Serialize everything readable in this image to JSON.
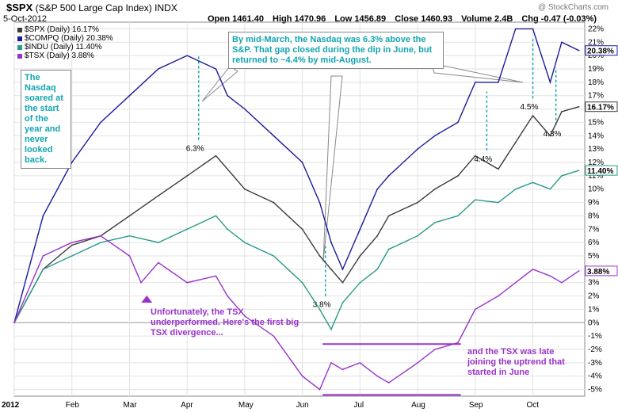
{
  "header": {
    "symbol": "$SPX",
    "name": "(S&P 500 Large Cap Index)",
    "exchange": "INDX",
    "date": "5-Oct-2012",
    "watermark": "@ StockCharts.com",
    "quote": [
      "Open 1461.40",
      "High 1470.96",
      "Low 1456.89",
      "Close 1460.93",
      "Volume 2.4B",
      "Chg -0.47 (-0.03%)"
    ]
  },
  "colors": {
    "spx": "#3a3a3a",
    "compq": "#1a1aa0",
    "indu": "#2a9a8a",
    "tsx": "#9933cc",
    "annotation_teal": "#11a5b0",
    "annotation_purple": "#9933cc"
  },
  "chart_data": {
    "type": "line",
    "title": "$SPX (S&P 500 Large Cap Index) INDX",
    "x": [
      "2012",
      "Feb",
      "Mar",
      "Apr",
      "May",
      "Jun",
      "Jul",
      "Aug",
      "Sep",
      "Oct"
    ],
    "ylim": [
      -5.5,
      22.5
    ],
    "y_ticks": [
      "-5%",
      "-4%",
      "-3%",
      "-2%",
      "-1%",
      "0%",
      "1%",
      "2%",
      "3%",
      "4%",
      "5%",
      "6%",
      "7%",
      "8%",
      "9%",
      "10%",
      "11%",
      "12%",
      "13%",
      "14%",
      "15%",
      "16%",
      "17%",
      "18%",
      "19%",
      "20%",
      "21%",
      "22%"
    ],
    "series": [
      {
        "name": "$SPX (Daily) 16.17%",
        "last_label": "16.17%",
        "key": "spx",
        "values": [
          [
            0,
            0
          ],
          [
            0.5,
            4
          ],
          [
            1,
            5.8
          ],
          [
            1.5,
            6.5
          ],
          [
            2,
            8
          ],
          [
            2.5,
            9.5
          ],
          [
            3,
            11
          ],
          [
            3.5,
            12.5
          ],
          [
            3.7,
            11.5
          ],
          [
            4,
            10
          ],
          [
            4.5,
            9
          ],
          [
            5,
            7
          ],
          [
            5.3,
            5
          ],
          [
            5.5,
            4
          ],
          [
            5.7,
            3
          ],
          [
            6,
            5
          ],
          [
            6.3,
            6.5
          ],
          [
            6.5,
            8
          ],
          [
            7,
            9
          ],
          [
            7.3,
            10
          ],
          [
            7.7,
            11
          ],
          [
            8,
            12.5
          ],
          [
            8.4,
            11.5
          ],
          [
            8.7,
            13.5
          ],
          [
            9,
            15.5
          ],
          [
            9.3,
            14
          ],
          [
            9.5,
            15.8
          ],
          [
            9.8,
            16.17
          ]
        ]
      },
      {
        "name": "$COMPQ (Daily) 20.38%",
        "last_label": "20.38%",
        "key": "compq",
        "values": [
          [
            0,
            0
          ],
          [
            0.5,
            8
          ],
          [
            1,
            12
          ],
          [
            1.5,
            15
          ],
          [
            2,
            17
          ],
          [
            2.5,
            19
          ],
          [
            3,
            20
          ],
          [
            3.5,
            19
          ],
          [
            3.7,
            17
          ],
          [
            4,
            16
          ],
          [
            4.5,
            14
          ],
          [
            5,
            12
          ],
          [
            5.3,
            9
          ],
          [
            5.5,
            6
          ],
          [
            5.7,
            4
          ],
          [
            6,
            7
          ],
          [
            6.3,
            10
          ],
          [
            6.5,
            11
          ],
          [
            7,
            13
          ],
          [
            7.3,
            14
          ],
          [
            7.7,
            15
          ],
          [
            8,
            18
          ],
          [
            8.4,
            18
          ],
          [
            8.7,
            22
          ],
          [
            9,
            22
          ],
          [
            9.3,
            18
          ],
          [
            9.5,
            21
          ],
          [
            9.8,
            20.38
          ]
        ]
      },
      {
        "name": "$INDU (Daily) 11.40%",
        "last_label": "11.40%",
        "key": "indu",
        "values": [
          [
            0,
            0
          ],
          [
            0.5,
            4
          ],
          [
            1,
            5
          ],
          [
            1.5,
            6
          ],
          [
            2,
            6.5
          ],
          [
            2.5,
            6
          ],
          [
            3,
            7
          ],
          [
            3.5,
            8
          ],
          [
            3.7,
            7
          ],
          [
            4,
            6
          ],
          [
            4.5,
            5
          ],
          [
            5,
            3
          ],
          [
            5.3,
            1
          ],
          [
            5.5,
            -0.5
          ],
          [
            5.7,
            1.5
          ],
          [
            6,
            3
          ],
          [
            6.3,
            4
          ],
          [
            6.5,
            5.5
          ],
          [
            7,
            6.5
          ],
          [
            7.3,
            7.5
          ],
          [
            7.7,
            8
          ],
          [
            8,
            9.2
          ],
          [
            8.4,
            9
          ],
          [
            8.7,
            10
          ],
          [
            9,
            10.5
          ],
          [
            9.3,
            10
          ],
          [
            9.5,
            11
          ],
          [
            9.8,
            11.4
          ]
        ]
      },
      {
        "name": "$TSX (Daily) 3.88%",
        "last_label": "3.88%",
        "key": "tsx",
        "values": [
          [
            0,
            0
          ],
          [
            0.5,
            5
          ],
          [
            1,
            6
          ],
          [
            1.5,
            6.5
          ],
          [
            2,
            5
          ],
          [
            2.2,
            3
          ],
          [
            2.5,
            4.5
          ],
          [
            3,
            3
          ],
          [
            3.5,
            3.5
          ],
          [
            3.7,
            2
          ],
          [
            4,
            0.5
          ],
          [
            4.5,
            -1
          ],
          [
            5,
            -4
          ],
          [
            5.3,
            -5
          ],
          [
            5.5,
            -3
          ],
          [
            5.7,
            -3.5
          ],
          [
            6,
            -3
          ],
          [
            6.3,
            -4
          ],
          [
            6.5,
            -4.5
          ],
          [
            7,
            -3
          ],
          [
            7.3,
            -2
          ],
          [
            7.7,
            -1.5
          ],
          [
            8,
            1
          ],
          [
            8.4,
            2
          ],
          [
            8.7,
            3
          ],
          [
            9,
            4
          ],
          [
            9.3,
            3.5
          ],
          [
            9.5,
            3
          ],
          [
            9.8,
            3.88
          ]
        ]
      }
    ],
    "gap_annotations": [
      {
        "label": "6.3%",
        "x": 3.2,
        "y_from": 13.7,
        "y_to": 20
      },
      {
        "label": "3.8%",
        "x": 5.4,
        "y_from": 2,
        "y_to": 5.8
      },
      {
        "label": "4.4%",
        "x": 8.2,
        "y_from": 12.9,
        "y_to": 17.3
      },
      {
        "label": "4.5%",
        "x": 9.0,
        "y_from": 16.8,
        "y_to": 21.3
      },
      {
        "label": "4.3%",
        "x": 9.4,
        "y_from": 14.8,
        "y_to": 19.1
      }
    ]
  },
  "annotations": {
    "nasdaq_note": "The Nasdaq soared at the start of the year and never looked back.",
    "gap_note": "By mid-March, the Nasdaq was 6.3% above the S&P.  That gap closed during the dip in June, but returned to ~4.4% by mid-August.",
    "tsx_note": "Unfortunately, the TSX underperformed.  Here's the first big TSX divergence...",
    "tsx_late_note": "and the TSX was late joining the uptrend that started in June"
  }
}
